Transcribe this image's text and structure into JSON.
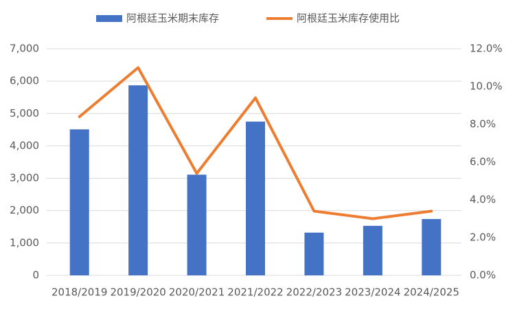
{
  "chart_data": {
    "type": "combo",
    "categories": [
      "2018/2019",
      "2019/2020",
      "2020/2021",
      "2021/2022",
      "2022/2023",
      "2023/2024",
      "2024/2025"
    ],
    "series": [
      {
        "name": "阿根廷玉米期末库存",
        "type": "bar",
        "color": "#4472c4",
        "values": [
          4510,
          5870,
          3110,
          4750,
          1320,
          1530,
          1740
        ]
      },
      {
        "name": "阿根廷玉米库存使用比",
        "type": "line",
        "axis": "y2",
        "color": "#ed7d31",
        "values": [
          8.4,
          11.0,
          5.4,
          9.4,
          3.4,
          3.0,
          3.4
        ]
      }
    ],
    "ylim": [
      0,
      7000
    ],
    "yticks": [
      0,
      {
        "value": 1000,
        "label": "1,000"
      },
      {
        "value": 2000,
        "label": "2,000"
      },
      {
        "value": 3000,
        "label": "3,000"
      },
      {
        "value": 4000,
        "label": "4,000"
      },
      {
        "value": 5000,
        "label": "5,000"
      },
      {
        "value": 6000,
        "label": "6,000"
      },
      {
        "value": 7000,
        "label": "7,000"
      }
    ],
    "y2lim": [
      0,
      12
    ],
    "y2ticks": [
      {
        "value": 0,
        "label": "0.0%"
      },
      {
        "value": 2,
        "label": "2.0%"
      },
      {
        "value": 4,
        "label": "4.0%"
      },
      {
        "value": 6,
        "label": "6.0%"
      },
      {
        "value": 8,
        "label": "8.0%"
      },
      {
        "value": 10,
        "label": "10.0%"
      },
      {
        "value": 12,
        "label": "12.0%"
      }
    ],
    "grid": true,
    "legend": "top"
  }
}
